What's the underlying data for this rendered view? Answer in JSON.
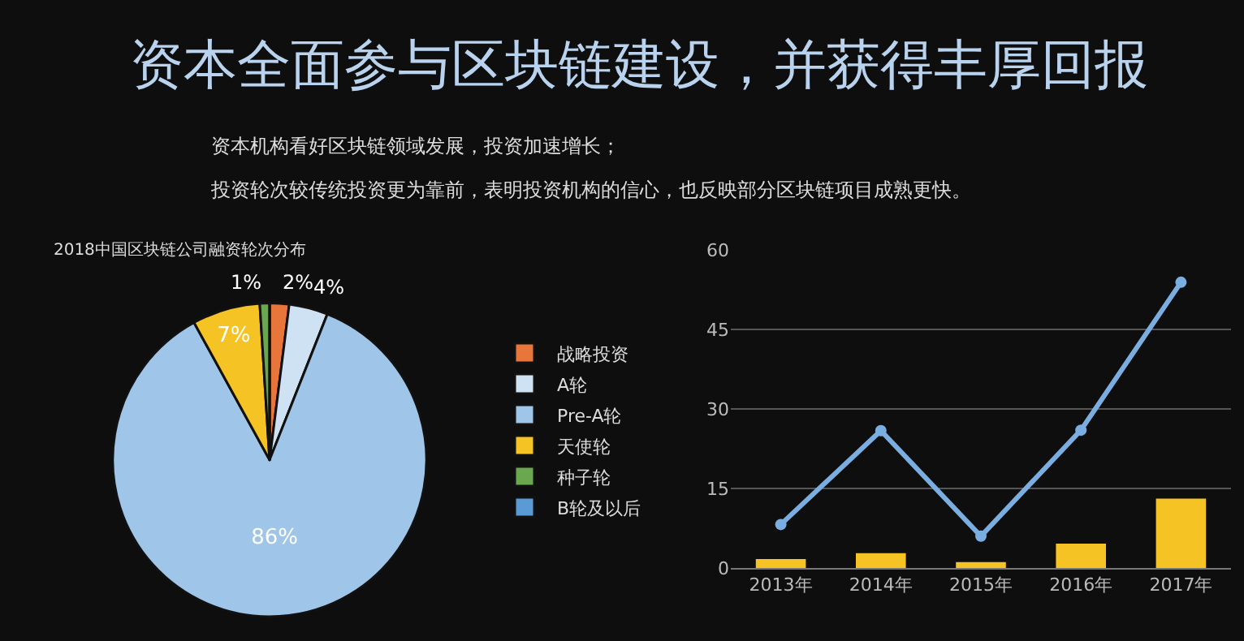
{
  "chart_data": [
    {
      "type": "other",
      "title": "资本全面参与区块链建设，并获得丰厚回报",
      "annotations": [
        "资本机构看好区块链领域发展，投资加速增长；",
        "投资轮次较传统投资更为靠前，表明投资机构的信心，也反映部分区块链项目成熟更快。"
      ]
    },
    {
      "type": "pie",
      "title": "2018中国区块链公司融资轮次分布",
      "categories": [
        "战略投资",
        "A轮",
        "Pre-A轮",
        "天使轮",
        "种子轮",
        "B轮及以后"
      ],
      "values": [
        2,
        4,
        86,
        7,
        1,
        0
      ],
      "colors": [
        "#e8763a",
        "#cfe2f3",
        "#9fc5e8",
        "#f6c324",
        "#6aa84f",
        "#5b9bd5"
      ],
      "value_labels": [
        "2%",
        "4%",
        "86%",
        "7%",
        "1%",
        null
      ],
      "legend": "right"
    },
    {
      "type": "bar",
      "categories": [
        "2013年",
        "2014年",
        "2015年",
        "2016年",
        "2017年"
      ],
      "series": [
        {
          "type": "bar",
          "color": "#f6c324",
          "values": [
            1.7,
            2.8,
            1.1,
            4.6,
            13.1
          ]
        },
        {
          "type": "line",
          "color": "#7aaee0",
          "values": [
            8.2,
            25.9,
            6,
            26,
            53.9
          ]
        }
      ],
      "ylim": [
        0,
        60
      ],
      "yticks": [
        0,
        15,
        30,
        45,
        60
      ],
      "grid": "y",
      "marker": "circle",
      "legend": false
    }
  ]
}
